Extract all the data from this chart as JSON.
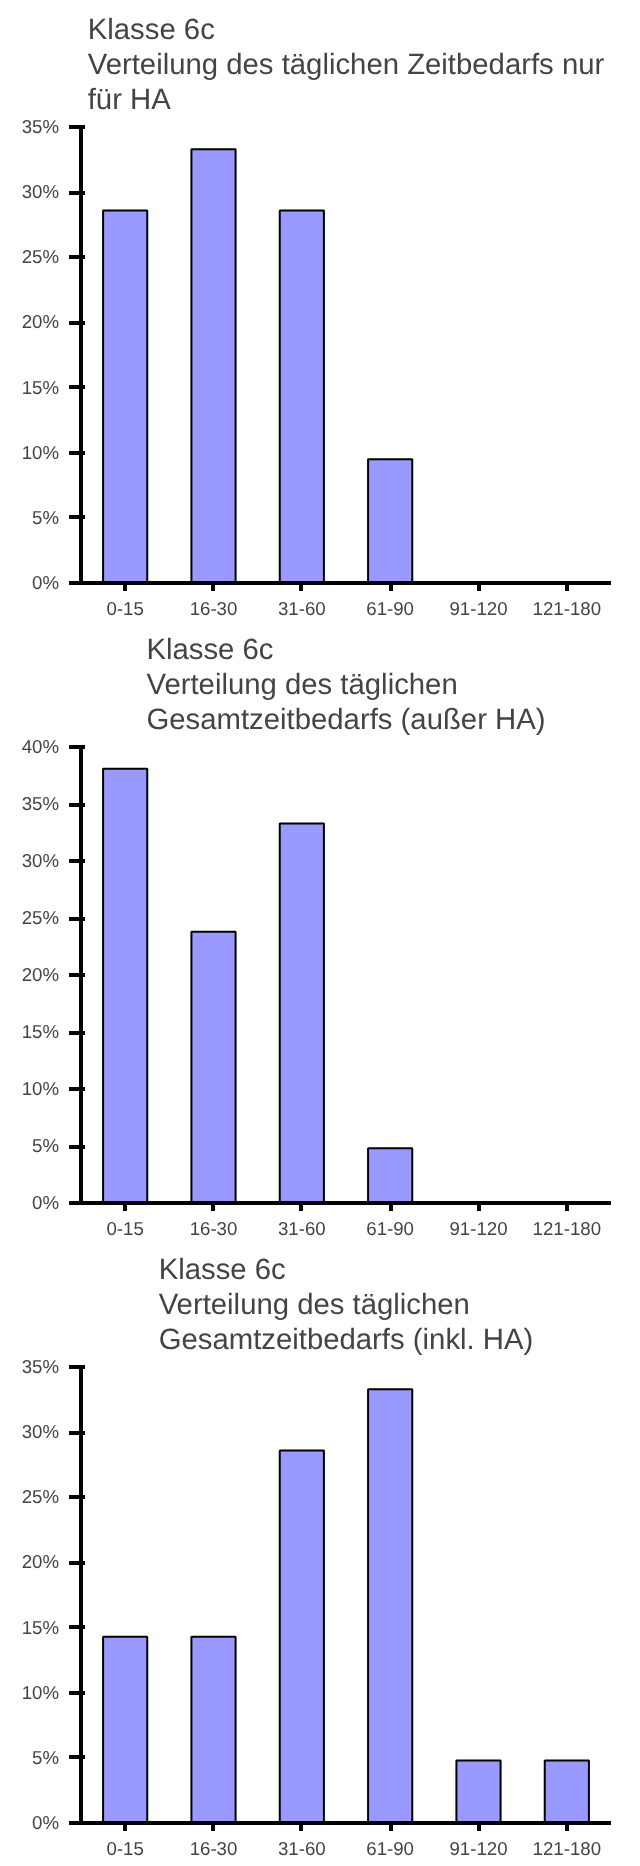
{
  "chart_data": [
    {
      "type": "bar",
      "title": "Klasse 6c\nVerteilung des täglichen Zeitbedarfs nur\nfür  HA",
      "categories": [
        "0-15",
        "16-30",
        "31-60",
        "61-90",
        "91-120",
        "121-180"
      ],
      "values": [
        28.6,
        33.3,
        28.6,
        9.5,
        0,
        0
      ],
      "color": "#9999ff",
      "ylim": [
        0,
        35
      ],
      "yticks": [
        {
          "value": 0,
          "label": "0%"
        },
        {
          "value": 5,
          "label": "5%"
        },
        {
          "value": 10,
          "label": "10%"
        },
        {
          "value": 15,
          "label": "15%"
        },
        {
          "value": 20,
          "label": "20%"
        },
        {
          "value": 25,
          "label": "25%"
        },
        {
          "value": 30,
          "label": "30%"
        },
        {
          "value": 35,
          "label": "35%"
        }
      ],
      "grid": false
    },
    {
      "type": "bar",
      "title": "Klasse 6c\nVerteilung des täglichen\nGesamtzeitbedarfs (außer HA)",
      "categories": [
        "0-15",
        "16-30",
        "31-60",
        "61-90",
        "91-120",
        "121-180"
      ],
      "values": [
        38.1,
        23.8,
        33.3,
        4.8,
        0,
        0
      ],
      "color": "#9999ff",
      "ylim": [
        0,
        40
      ],
      "yticks": [
        {
          "value": 0,
          "label": "0%"
        },
        {
          "value": 5,
          "label": "5%"
        },
        {
          "value": 10,
          "label": "10%"
        },
        {
          "value": 15,
          "label": "15%"
        },
        {
          "value": 20,
          "label": "20%"
        },
        {
          "value": 25,
          "label": "25%"
        },
        {
          "value": 30,
          "label": "30%"
        },
        {
          "value": 35,
          "label": "35%"
        },
        {
          "value": 40,
          "label": "40%"
        }
      ],
      "grid": false
    },
    {
      "type": "bar",
      "title": "Klasse 6c\nVerteilung des täglichen\nGesamtzeitbedarfs (inkl. HA)",
      "categories": [
        "0-15",
        "16-30",
        "31-60",
        "61-90",
        "91-120",
        "121-180"
      ],
      "values": [
        14.3,
        14.3,
        28.6,
        33.3,
        4.8,
        4.8
      ],
      "color": "#9999ff",
      "ylim": [
        0,
        35
      ],
      "yticks": [
        {
          "value": 0,
          "label": "0%"
        },
        {
          "value": 5,
          "label": "5%"
        },
        {
          "value": 10,
          "label": "10%"
        },
        {
          "value": 15,
          "label": "15%"
        },
        {
          "value": 20,
          "label": "20%"
        },
        {
          "value": 25,
          "label": "25%"
        },
        {
          "value": 30,
          "label": "30%"
        },
        {
          "value": 35,
          "label": "35%"
        }
      ],
      "grid": false
    }
  ]
}
